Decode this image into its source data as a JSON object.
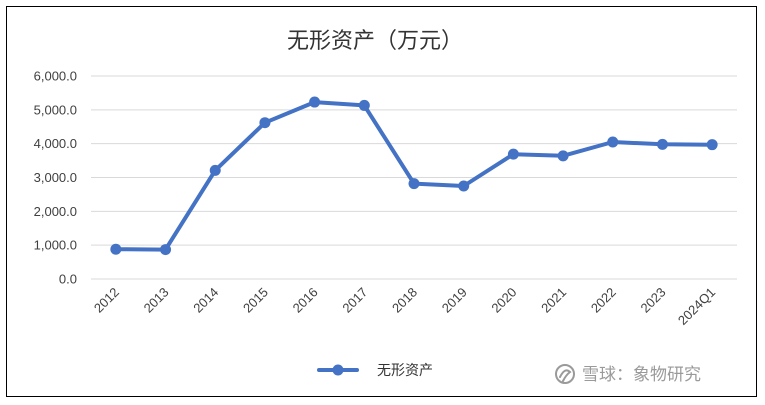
{
  "chart_data": {
    "type": "line",
    "title": "无形资产（万元）",
    "categories": [
      "2012",
      "2013",
      "2014",
      "2015",
      "2016",
      "2017",
      "2018",
      "2019",
      "2020",
      "2021",
      "2022",
      "2023",
      "2024Q1"
    ],
    "series": [
      {
        "name": "无形资产",
        "values": [
          880,
          870,
          3210,
          4620,
          5230,
          5130,
          2820,
          2750,
          3690,
          3640,
          4050,
          3980,
          3970
        ],
        "color": "#4472c4"
      }
    ],
    "ylim": [
      0,
      6000
    ],
    "yticks": [
      0,
      1000,
      2000,
      3000,
      4000,
      5000,
      6000
    ],
    "ytick_labels": [
      "0.0",
      "1,000.0",
      "2,000.0",
      "3,000.0",
      "4,000.0",
      "5,000.0",
      "6,000.0"
    ],
    "grid": true,
    "legend_position": "bottom"
  },
  "watermark": {
    "text": "雪球：象物研究",
    "icon": "snowball-logo-icon"
  }
}
